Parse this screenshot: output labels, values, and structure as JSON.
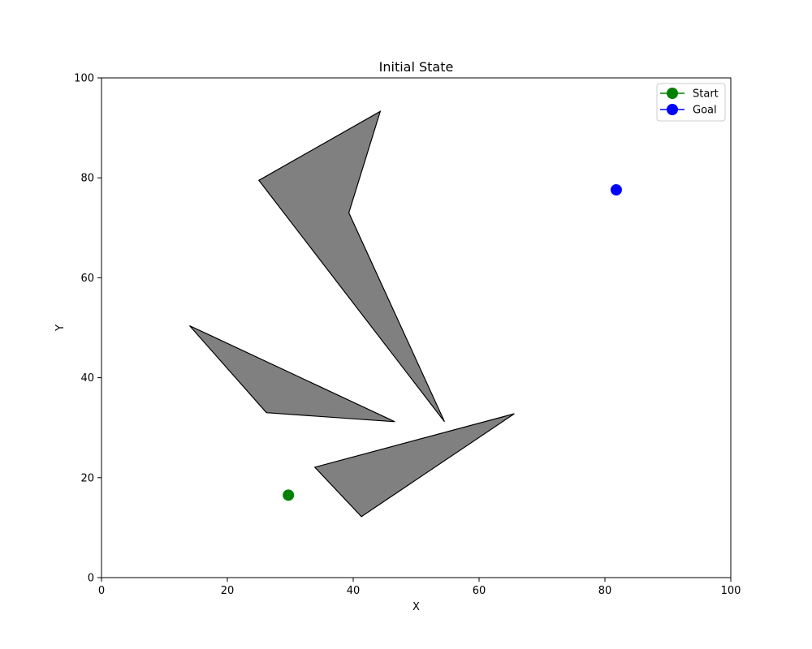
{
  "chart_data": {
    "type": "scatter",
    "title": "Initial State",
    "xlabel": "X",
    "ylabel": "Y",
    "xlim": [
      0,
      100
    ],
    "ylim": [
      0,
      100
    ],
    "xticks": [
      0,
      20,
      40,
      60,
      80,
      100
    ],
    "yticks": [
      0,
      20,
      40,
      60,
      80,
      100
    ],
    "grid": false,
    "legend_position": "top-right",
    "obstacle_color": "#808080",
    "obstacles": [
      {
        "points": [
          [
            25,
            79.5
          ],
          [
            44.3,
            93.3
          ],
          [
            39.3,
            73
          ],
          [
            54.5,
            31.2
          ]
        ]
      },
      {
        "points": [
          [
            14,
            50.4
          ],
          [
            26.2,
            33
          ],
          [
            46.6,
            31.2
          ]
        ]
      },
      {
        "points": [
          [
            33.9,
            22.1
          ],
          [
            65.6,
            32.8
          ],
          [
            41.3,
            12.2
          ]
        ]
      }
    ],
    "series": [
      {
        "name": "Start",
        "color": "#008000",
        "x": [
          29.7
        ],
        "y": [
          16.5
        ]
      },
      {
        "name": "Goal",
        "color": "#0000ff",
        "x": [
          81.8
        ],
        "y": [
          77.6
        ]
      }
    ]
  }
}
